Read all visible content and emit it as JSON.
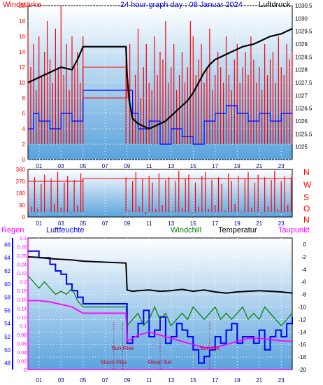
{
  "top_panel": {
    "left_label": "Windstärke",
    "title": "24 hour graph day : 08 Januar 2024",
    "right_label": "Luftdruck"
  },
  "direction_letters": [
    "N",
    "W",
    "S",
    "O",
    "N"
  ],
  "bottom_panel": {
    "regen_label": "Regen",
    "luftfeuchte_label": "Luftfeuchte",
    "windchill_label": "Windchill",
    "temperatur_label": "Temperatur",
    "taupunkt_label": "Taupunkt"
  },
  "events": [
    {
      "label": "Sun Rise",
      "x": 8.6
    },
    {
      "label": "Moon Rise",
      "x": 7.8
    },
    {
      "label": "Moon Set",
      "x": 12.0
    },
    {
      "label": "Sun Set",
      "x": 16.5
    }
  ],
  "colors": {
    "wind": "#ff0000",
    "pressure": "#000000",
    "humidity": "#0000ff",
    "windchill": "#008000",
    "temperature": "#000000",
    "dewpoint": "#ff00ff",
    "rain": "#ff00ff",
    "panel_top": "#ffffff",
    "panel_bottom": "#5aa3dd"
  },
  "chart_data": [
    {
      "type": "line",
      "x_ticks": [
        "01",
        "03",
        "05",
        "07",
        "09",
        "11",
        "13",
        "15",
        "17",
        "19",
        "21",
        "23"
      ],
      "xlim": [
        0,
        24
      ],
      "left_axis": {
        "label": "Windstärke",
        "ylim": [
          0,
          20
        ],
        "ticks": [
          "0",
          "2",
          "4",
          "6",
          "8",
          "10",
          "12",
          "14",
          "16",
          "18",
          "20"
        ]
      },
      "right_axis": {
        "label": "Luftdruck",
        "ylim": [
          1024.5,
          1030.5
        ],
        "ticks": [
          "1025",
          "1025.5",
          "1026",
          "1026.5",
          "1027",
          "1027.5",
          "1028",
          "1028.5",
          "1029",
          "1029.5",
          "1030",
          "1030.5"
        ]
      },
      "series": [
        {
          "name": "Windstärke",
          "axis": "left",
          "style": "spikes",
          "x": [
            0,
            0.25,
            0.5,
            0.75,
            1,
            1.25,
            1.5,
            1.75,
            2,
            2.25,
            2.5,
            2.75,
            3,
            3.25,
            3.5,
            3.75,
            4,
            4.25,
            4.5,
            4.75,
            5,
            8.9,
            9.25,
            9.5,
            9.75,
            10,
            10.25,
            10.5,
            10.75,
            11,
            11.25,
            11.5,
            11.75,
            12,
            12.25,
            12.5,
            12.75,
            13,
            13.25,
            13.5,
            13.75,
            14,
            14.25,
            14.5,
            14.75,
            15,
            15.25,
            15.5,
            15.75,
            16,
            16.25,
            16.5,
            16.75,
            17,
            17.25,
            17.5,
            17.75,
            18,
            18.25,
            18.5,
            18.75,
            19,
            19.25,
            19.5,
            19.75,
            20,
            20.25,
            20.5,
            20.75,
            21,
            21.25,
            21.5,
            21.75,
            22,
            22.25,
            22.5,
            22.75,
            23,
            23.25,
            23.5,
            23.75,
            24
          ],
          "y": [
            17,
            12,
            15,
            9,
            16,
            11,
            14,
            18,
            13,
            10,
            17,
            12,
            20,
            11,
            15,
            9,
            16,
            12,
            14,
            10,
            16,
            13,
            15,
            9,
            11,
            17,
            8,
            12,
            15,
            10,
            9,
            16,
            11,
            14,
            13,
            18,
            10,
            12,
            15,
            9,
            11,
            14,
            10,
            12,
            18,
            16,
            11,
            13,
            15,
            10,
            12,
            17,
            9,
            11,
            14,
            12,
            10,
            16,
            11,
            9,
            13,
            15,
            10,
            12,
            14,
            11,
            16,
            13,
            10,
            12,
            9,
            15,
            11,
            13,
            14,
            10,
            16,
            12,
            11,
            15,
            13,
            14
          ]
        },
        {
          "name": "Windstärke mean",
          "axis": "left",
          "style": "step",
          "x": [
            0,
            0.5,
            1,
            2,
            3,
            4,
            5,
            9,
            9.5,
            10,
            11,
            12,
            13,
            14,
            15,
            16,
            17,
            18,
            19,
            20,
            21,
            22,
            23,
            24
          ],
          "y": [
            4,
            6,
            5,
            4,
            6,
            5,
            9,
            9,
            6,
            4,
            5,
            2,
            4,
            3,
            2,
            5,
            6,
            7,
            6,
            5,
            6,
            5,
            6,
            6
          ]
        },
        {
          "name": "Luftdruck",
          "axis": "right",
          "x": [
            0,
            0.5,
            1,
            1.5,
            2,
            2.5,
            3,
            3.5,
            4,
            4.5,
            5,
            8.9,
            9,
            9.2,
            9.5,
            10,
            10.5,
            11,
            11.5,
            12,
            12.5,
            13,
            13.5,
            14,
            14.5,
            15,
            15.5,
            16,
            16.5,
            17,
            17.5,
            18,
            18.5,
            19,
            19.5,
            20,
            20.5,
            21,
            21.5,
            22,
            22.5,
            23,
            23.5,
            24
          ],
          "y": [
            1027.5,
            1027.6,
            1027.7,
            1027.8,
            1027.9,
            1028.0,
            1028.1,
            1028.05,
            1028.0,
            1028.4,
            1028.9,
            1028.9,
            1027.8,
            1026.8,
            1026.1,
            1025.9,
            1025.8,
            1025.7,
            1025.8,
            1025.9,
            1026.0,
            1026.2,
            1026.4,
            1026.6,
            1026.8,
            1027.1,
            1027.5,
            1027.9,
            1028.2,
            1028.4,
            1028.5,
            1028.6,
            1028.7,
            1028.8,
            1028.9,
            1028.95,
            1029.0,
            1029.1,
            1029.2,
            1029.3,
            1029.35,
            1029.4,
            1029.5,
            1029.6
          ]
        }
      ]
    },
    {
      "type": "line",
      "x_ticks": [
        "01",
        "03",
        "05",
        "07",
        "09",
        "11",
        "13",
        "15",
        "17",
        "19",
        "21",
        "23"
      ],
      "xlim": [
        0,
        24
      ],
      "left_axis": {
        "label": "",
        "ylim": [
          0,
          360
        ],
        "ticks": [
          "0",
          "90",
          "180",
          "270",
          "360"
        ]
      },
      "series": [
        {
          "name": "Windrichtung",
          "axis": "left",
          "style": "spikes",
          "x": [
            0,
            0.3,
            0.6,
            0.9,
            1.2,
            1.5,
            1.8,
            2.1,
            2.4,
            2.7,
            3,
            3.3,
            3.6,
            3.9,
            4.2,
            4.5,
            4.8,
            5,
            8.9,
            9.2,
            9.5,
            9.8,
            10.1,
            10.4,
            10.7,
            11,
            11.3,
            11.6,
            11.9,
            12.2,
            12.5,
            12.8,
            13.1,
            13.4,
            13.7,
            14,
            14.3,
            14.6,
            14.9,
            15.2,
            15.5,
            15.8,
            16.1,
            16.4,
            16.7,
            17,
            17.3,
            17.6,
            17.9,
            18.2,
            18.5,
            18.8,
            19.1,
            19.4,
            19.7,
            20,
            20.3,
            20.6,
            20.9,
            21.2,
            21.5,
            21.8,
            22.1,
            22.4,
            22.7,
            23,
            23.3,
            23.6,
            23.9
          ],
          "y": [
            280,
            80,
            300,
            60,
            250,
            320,
            40,
            290,
            100,
            340,
            70,
            260,
            310,
            30,
            280,
            90,
            330,
            290,
            300,
            50,
            270,
            340,
            80,
            290,
            20,
            310,
            260,
            60,
            330,
            90,
            280,
            300,
            40,
            270,
            350,
            70,
            290,
            320,
            30,
            260,
            80,
            310,
            340,
            60,
            280,
            90,
            300,
            250,
            50,
            330,
            270,
            100,
            310,
            40,
            290,
            340,
            70,
            260,
            320,
            30,
            300,
            80,
            280,
            350,
            60,
            270,
            310,
            90,
            300
          ]
        },
        {
          "name": "Windrichtung mean",
          "axis": "left",
          "style": "step",
          "x": [
            0,
            5,
            8.9,
            24
          ],
          "y": [
            270,
            290,
            290,
            280
          ]
        }
      ]
    },
    {
      "type": "line",
      "x_ticks": [
        "01",
        "03",
        "05",
        "07",
        "09",
        "11",
        "13",
        "15",
        "17",
        "19",
        "21",
        "23"
      ],
      "xlim": [
        0,
        24
      ],
      "humidity_axis": {
        "label": "Luftfeuchte",
        "ylim": [
          47,
          67
        ],
        "ticks": [
          "48",
          "50",
          "52",
          "54",
          "56",
          "58",
          "60",
          "62",
          "64",
          "66"
        ]
      },
      "rain_axis": {
        "label": "Regen",
        "ylim": [
          0,
          0.3
        ],
        "ticks": [
          "0",
          "0.02",
          "0.04",
          "0.06",
          "0.08",
          "0.1",
          "0.12",
          "0.14",
          "0.16",
          "0.18",
          "0.2",
          "0.22",
          "0.24",
          "0.26",
          "0.28",
          "0.3"
        ]
      },
      "temp_axis": {
        "label": "",
        "ylim": [
          -20,
          1
        ],
        "ticks": [
          "-20",
          "-18",
          "-16",
          "-14",
          "-12",
          "-10",
          "-8",
          "-6",
          "-4",
          "-2",
          "0"
        ]
      },
      "series": [
        {
          "name": "Regen",
          "axis": "rain",
          "x": [
            -0.5,
            0,
            0,
            24
          ],
          "y": [
            0.3,
            0.3,
            0,
            0
          ]
        },
        {
          "name": "Luftfeuchte",
          "axis": "humidity",
          "x": [
            0,
            1,
            1.5,
            2,
            2.5,
            3,
            3.5,
            4,
            4.5,
            5,
            8.9,
            9,
            9.5,
            10,
            10.5,
            11,
            11.5,
            12,
            12.5,
            13,
            13.5,
            14,
            14.5,
            15,
            15.5,
            16,
            16.5,
            17,
            17.5,
            18,
            18.5,
            19,
            19.5,
            20,
            20.5,
            21,
            21.5,
            22,
            22.5,
            23,
            23.5,
            24
          ],
          "y": [
            65,
            64,
            64,
            63,
            62,
            61.5,
            60,
            59,
            58,
            57,
            57,
            51,
            52,
            54,
            56,
            52,
            53,
            55,
            51,
            52,
            54,
            53,
            52,
            50,
            48,
            49,
            50,
            52,
            51,
            53,
            54,
            51,
            52,
            52,
            51,
            53,
            50,
            52,
            53,
            52,
            54,
            55
          ]
        },
        {
          "name": "Windchill",
          "axis": "temp",
          "x": [
            0,
            0.5,
            1,
            1.5,
            2,
            2.5,
            3,
            3.5,
            4,
            4.5,
            5,
            8.9,
            9,
            9.5,
            10,
            10.5,
            11,
            11.5,
            12,
            12.5,
            13,
            13.5,
            14,
            14.5,
            15,
            15.5,
            16,
            16.5,
            17,
            17.5,
            18,
            18.5,
            19,
            19.5,
            20,
            20.5,
            21,
            21.5,
            22,
            22.5,
            23,
            23.5,
            24
          ],
          "y": [
            -5,
            -6,
            -7,
            -6,
            -7,
            -8,
            -7.5,
            -8,
            -7,
            -9,
            -10,
            -10,
            -13,
            -12,
            -11,
            -13,
            -12,
            -10,
            -12,
            -11,
            -13,
            -12,
            -11,
            -12,
            -10,
            -11,
            -12,
            -11,
            -10,
            -12,
            -11,
            -12,
            -11,
            -10,
            -12,
            -11,
            -12,
            -10,
            -11,
            -12,
            -13,
            -12,
            -11
          ]
        },
        {
          "name": "Temperatur",
          "axis": "temp",
          "x": [
            0,
            1,
            2,
            3,
            4,
            5,
            8.9,
            9,
            9.5,
            10,
            11,
            12,
            13,
            14,
            15,
            16,
            17,
            18,
            19,
            20,
            21,
            22,
            23,
            24
          ],
          "y": [
            -2,
            -2.1,
            -2.3,
            -2.4,
            -2.5,
            -2.7,
            -3,
            -7.3,
            -7.5,
            -7.4,
            -7.3,
            -7.5,
            -7.4,
            -7.2,
            -7.5,
            -7.3,
            -7.6,
            -7.8,
            -7.6,
            -7.5,
            -7.4,
            -7.5,
            -7.6,
            -7.8
          ]
        },
        {
          "name": "Taupunkt",
          "axis": "temp",
          "x": [
            0,
            1,
            2,
            3,
            4,
            5,
            8.9,
            9,
            9.5,
            10,
            11,
            12,
            13,
            14,
            15,
            16,
            17,
            18,
            19,
            20,
            21,
            22,
            23,
            24
          ],
          "y": [
            -9,
            -9,
            -9.2,
            -9.6,
            -10,
            -11,
            -11,
            -15.5,
            -15,
            -14.5,
            -14,
            -14.5,
            -15,
            -15.5,
            -16,
            -16.5,
            -16.5,
            -16,
            -15.5,
            -15,
            -15,
            -15.2,
            -15.4,
            -15.5
          ]
        }
      ]
    }
  ]
}
